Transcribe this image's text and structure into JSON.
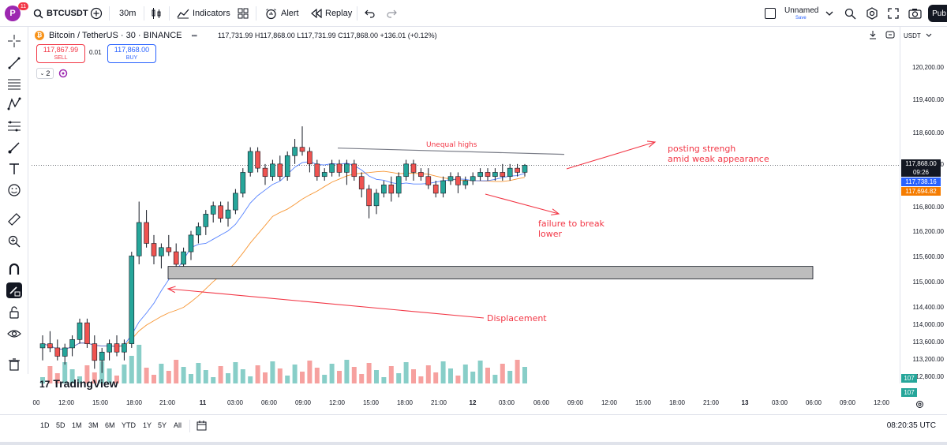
{
  "topbar": {
    "avatar_letter": "P",
    "avatar_badge": "11",
    "symbol": "BTCUSDT",
    "interval": "30m",
    "indicators_label": "Indicators",
    "alert_label": "Alert",
    "replay_label": "Replay",
    "layout_name": "Unnamed",
    "layout_status": "Save",
    "publish_label": "Pub"
  },
  "legend": {
    "title": "Bitcoin / TetherUS · 30 · BINANCE",
    "ohlc": "117,731.99 H117,868.00 L117,731.99 C117,868.00 +136.01 (+0.12%)",
    "sell_price": "117,867.99",
    "sell_label": "SELL",
    "spread": "0.01",
    "buy_price": "117,868.00",
    "buy_label": "BUY",
    "indicator_count": "2"
  },
  "currency": "USDT",
  "price_axis": [
    "120,200.00",
    "119,400.00",
    "118,600.00",
    "117,800.00",
    "116,800.00",
    "116,200.00",
    "115,600.00",
    "115,000.00",
    "114,400.00",
    "114,000.00",
    "113,600.00",
    "113,200.00",
    "112,800.00"
  ],
  "price_labels": {
    "current": "117,868.00",
    "countdown": "09:26",
    "ma_blue": "117,738.16",
    "ma_orange": "117,694.82",
    "vol1": "107",
    "vol2": "107"
  },
  "time_axis": [
    "00",
    "12:00",
    "15:00",
    "18:00",
    "21:00",
    "11",
    "03:00",
    "06:00",
    "09:00",
    "12:00",
    "15:00",
    "18:00",
    "21:00",
    "12",
    "03:00",
    "06:00",
    "09:00",
    "12:00",
    "15:00",
    "18:00",
    "21:00",
    "13",
    "03:00",
    "06:00",
    "09:00",
    "12:00"
  ],
  "ranges": [
    "1D",
    "5D",
    "1M",
    "3M",
    "6M",
    "YTD",
    "1Y",
    "5Y",
    "All"
  ],
  "clock": "08:20:35 UTC",
  "watermark": "TradingView",
  "annotations": {
    "unequal_highs": "Unequal highs",
    "posting_line1": "posting strengh",
    "posting_line2": "amid weak appearance",
    "failure_line1": "failure to break",
    "failure_line2": "lower",
    "displacement": "Displacement"
  },
  "colors": {
    "up": "#26a69a",
    "down": "#ef5350",
    "annotation": "#f23645",
    "ma_blue": "#2962ff",
    "ma_orange": "#f57c00"
  },
  "chart_data": {
    "type": "candlestick",
    "symbol": "BTCUSDT",
    "interval": "30m",
    "y_range": [
      112500,
      120500
    ],
    "candles": [
      [
        113500,
        113800,
        113200,
        113600
      ],
      [
        113600,
        113900,
        113400,
        113500
      ],
      [
        113500,
        113700,
        113200,
        113300
      ],
      [
        113300,
        113600,
        113100,
        113500
      ],
      [
        113500,
        113800,
        113300,
        113700
      ],
      [
        113700,
        114200,
        113600,
        114100
      ],
      [
        114100,
        114200,
        113500,
        113600
      ],
      [
        113600,
        113800,
        113000,
        113200
      ],
      [
        113200,
        113500,
        112900,
        113400
      ],
      [
        113400,
        113700,
        113200,
        113600
      ],
      [
        113600,
        113800,
        113300,
        113400
      ],
      [
        113400,
        113700,
        113200,
        113600
      ],
      [
        113600,
        115800,
        113500,
        115700
      ],
      [
        115700,
        117000,
        115500,
        116500
      ],
      [
        116500,
        116800,
        115900,
        116000
      ],
      [
        116000,
        116200,
        115500,
        115700
      ],
      [
        115700,
        116000,
        115400,
        115900
      ],
      [
        115900,
        116200,
        115700,
        115800
      ],
      [
        115800,
        116000,
        115300,
        115500
      ],
      [
        115500,
        115900,
        115200,
        115800
      ],
      [
        115800,
        116300,
        115600,
        116200
      ],
      [
        116200,
        116500,
        116000,
        116400
      ],
      [
        116400,
        116800,
        116200,
        116700
      ],
      [
        116700,
        117000,
        116500,
        116900
      ],
      [
        116900,
        117000,
        116500,
        116600
      ],
      [
        116600,
        117000,
        116400,
        116800
      ],
      [
        116800,
        117300,
        116700,
        117200
      ],
      [
        117200,
        117800,
        117100,
        117700
      ],
      [
        117700,
        118300,
        117600,
        118200
      ],
      [
        118200,
        118300,
        117700,
        117800
      ],
      [
        117800,
        117900,
        117400,
        117600
      ],
      [
        117600,
        118000,
        117500,
        117900
      ],
      [
        117900,
        118100,
        117500,
        117600
      ],
      [
        117600,
        118200,
        117500,
        118100
      ],
      [
        118100,
        118500,
        117900,
        118300
      ],
      [
        118300,
        118800,
        118100,
        118200
      ],
      [
        118200,
        118300,
        117700,
        117900
      ],
      [
        117900,
        118000,
        117500,
        117600
      ],
      [
        117600,
        117800,
        117500,
        117700
      ],
      [
        117700,
        118000,
        117600,
        117900
      ],
      [
        117900,
        118000,
        117600,
        117700
      ],
      [
        117700,
        118000,
        117400,
        117900
      ],
      [
        117900,
        118000,
        117500,
        117600
      ],
      [
        117600,
        117700,
        117100,
        117300
      ],
      [
        117300,
        117400,
        116600,
        116900
      ],
      [
        116900,
        117300,
        116700,
        117200
      ],
      [
        117200,
        117500,
        117100,
        117400
      ],
      [
        117400,
        117600,
        117000,
        117200
      ],
      [
        117200,
        117700,
        117100,
        117600
      ],
      [
        117600,
        118000,
        117500,
        117900
      ],
      [
        117900,
        118000,
        117500,
        117700
      ],
      [
        117700,
        117800,
        117500,
        117600
      ],
      [
        117600,
        117800,
        117300,
        117400
      ],
      [
        117400,
        117500,
        117100,
        117200
      ],
      [
        117200,
        117600,
        117100,
        117500
      ],
      [
        117500,
        117700,
        117400,
        117600
      ],
      [
        117600,
        117700,
        117200,
        117400
      ],
      [
        117400,
        117600,
        117300,
        117500
      ],
      [
        117500,
        117700,
        117400,
        117600
      ],
      [
        117600,
        117800,
        117500,
        117700
      ],
      [
        117700,
        117800,
        117500,
        117600
      ],
      [
        117600,
        117800,
        117500,
        117700
      ],
      [
        117700,
        117900,
        117500,
        117600
      ],
      [
        117600,
        117900,
        117500,
        117800
      ],
      [
        117800,
        117900,
        117600,
        117700
      ],
      [
        117700,
        117900,
        117600,
        117870
      ]
    ]
  }
}
